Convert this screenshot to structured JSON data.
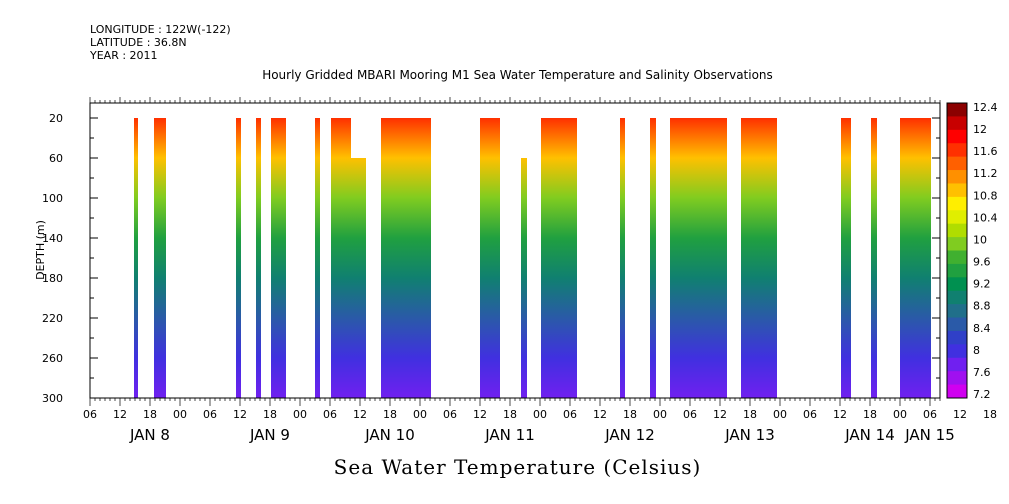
{
  "header": {
    "longitude": "LONGITUDE : 122W(-122)",
    "latitude": "LATITUDE : 36.8N",
    "year": "YEAR : 2011"
  },
  "chart_data": {
    "type": "heatmap",
    "title": "Hourly Gridded MBARI Mooring M1 Sea Water Temperature and Salinity Observations",
    "xlabel": "Sea Water Temperature (Celsius)",
    "ylabel": "DEPTH (m)",
    "ylim": [
      300,
      0
    ],
    "y_ticks": [
      "20",
      "60",
      "100",
      "140",
      "180",
      "220",
      "260",
      "300"
    ],
    "y_tick_values": [
      20,
      60,
      100,
      140,
      180,
      220,
      260,
      300
    ],
    "x_unit": "hours since 2011-01-07 06:00",
    "xlim": [
      0,
      170
    ],
    "hour_ticks": [
      "06",
      "12",
      "18",
      "00",
      "06",
      "12",
      "18",
      "00",
      "06",
      "12",
      "18",
      "00",
      "06",
      "12",
      "18",
      "00",
      "06",
      "12",
      "18",
      "00",
      "06",
      "12",
      "18",
      "00",
      "06",
      "12",
      "18",
      "00",
      "06",
      "12",
      "18",
      "00",
      "06"
    ],
    "day_labels": [
      {
        "label": "JAN  8",
        "hour": 12
      },
      {
        "label": "JAN  9",
        "hour": 36
      },
      {
        "label": "JAN 10",
        "hour": 60
      },
      {
        "label": "JAN 11",
        "hour": 84
      },
      {
        "label": "JAN 12",
        "hour": 108
      },
      {
        "label": "JAN 13",
        "hour": 132
      },
      {
        "label": "JAN 14",
        "hour": 156
      },
      {
        "label": "JAN 15",
        "hour": 168
      }
    ],
    "colorbar": {
      "labels": [
        "12.4",
        "12",
        "11.6",
        "11.2",
        "10.8",
        "10.4",
        "10",
        "9.6",
        "9.2",
        "8.8",
        "8.4",
        "8",
        "7.6",
        "7.2"
      ],
      "colors": [
        "#8b0000",
        "#c80000",
        "#ff0000",
        "#ff3000",
        "#ff6000",
        "#ff9000",
        "#ffc000",
        "#ffee00",
        "#e0ee00",
        "#b0dd00",
        "#80cc20",
        "#40b030",
        "#20a040",
        "#009050",
        "#108070",
        "#206f8a",
        "#2a5aa8",
        "#3040c8",
        "#4030e0",
        "#7020f0",
        "#a010f0",
        "#d000f0"
      ]
    },
    "coverage": [
      {
        "start": 8.8,
        "end": 9.6,
        "top_depth": 20
      },
      {
        "start": 12.8,
        "end": 15.2,
        "top_depth": 20
      },
      {
        "start": 29.2,
        "end": 30.2,
        "top_depth": 20
      },
      {
        "start": 33.2,
        "end": 34.2,
        "top_depth": 20
      },
      {
        "start": 36.2,
        "end": 39.2,
        "top_depth": 20
      },
      {
        "start": 45.0,
        "end": 46.0,
        "top_depth": 20
      },
      {
        "start": 48.2,
        "end": 52.2,
        "top_depth": 20
      },
      {
        "start": 52.2,
        "end": 55.2,
        "top_depth": 60
      },
      {
        "start": 58.2,
        "end": 68.2,
        "top_depth": 20
      },
      {
        "start": 78.0,
        "end": 82.0,
        "top_depth": 20
      },
      {
        "start": 86.2,
        "end": 87.4,
        "top_depth": 60
      },
      {
        "start": 90.2,
        "end": 97.4,
        "top_depth": 20
      },
      {
        "start": 106.0,
        "end": 107.0,
        "top_depth": 20
      },
      {
        "start": 112.0,
        "end": 113.2,
        "top_depth": 20
      },
      {
        "start": 116.0,
        "end": 127.4,
        "top_depth": 20
      },
      {
        "start": 130.2,
        "end": 137.4,
        "top_depth": 20
      },
      {
        "start": 150.2,
        "end": 152.2,
        "top_depth": 20
      },
      {
        "start": 150.2,
        "end": 151.2,
        "top_depth": 40
      },
      {
        "start": 156.2,
        "end": 157.4,
        "top_depth": 20
      },
      {
        "start": 162.0,
        "end": 168.2,
        "top_depth": 20
      }
    ],
    "profile": [
      {
        "depth": 20,
        "temp": 11.9
      },
      {
        "depth": 60,
        "temp": 11.0
      },
      {
        "depth": 100,
        "temp": 10.0
      },
      {
        "depth": 140,
        "temp": 9.3
      },
      {
        "depth": 180,
        "temp": 8.8
      },
      {
        "depth": 220,
        "temp": 8.3
      },
      {
        "depth": 260,
        "temp": 7.9
      },
      {
        "depth": 300,
        "temp": 7.5
      }
    ]
  }
}
